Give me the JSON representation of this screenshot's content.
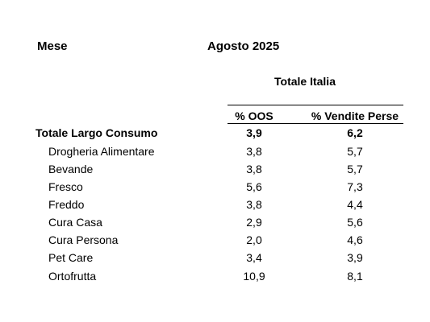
{
  "header": {
    "month_label": "Mese",
    "month_value": "Agosto 2025",
    "region": "Totale Italia"
  },
  "table": {
    "columns": [
      "% OOS",
      "% Vendite Perse"
    ],
    "rows": [
      {
        "label": "Totale Largo Consumo",
        "oos": "3,9",
        "lost_sales": "6,2",
        "total": true
      },
      {
        "label": "Drogheria Alimentare",
        "oos": "3,8",
        "lost_sales": "5,7"
      },
      {
        "label": "Bevande",
        "oos": "3,8",
        "lost_sales": "5,7"
      },
      {
        "label": "Fresco",
        "oos": "5,6",
        "lost_sales": "7,3"
      },
      {
        "label": "Freddo",
        "oos": "3,8",
        "lost_sales": "4,4"
      },
      {
        "label": "Cura Casa",
        "oos": "2,9",
        "lost_sales": "5,6"
      },
      {
        "label": "Cura Persona",
        "oos": "2,0",
        "lost_sales": "4,6"
      },
      {
        "label": "Pet Care",
        "oos": "3,4",
        "lost_sales": "3,9"
      },
      {
        "label": "Ortofrutta",
        "oos": "10,9",
        "lost_sales": "8,1"
      }
    ]
  }
}
